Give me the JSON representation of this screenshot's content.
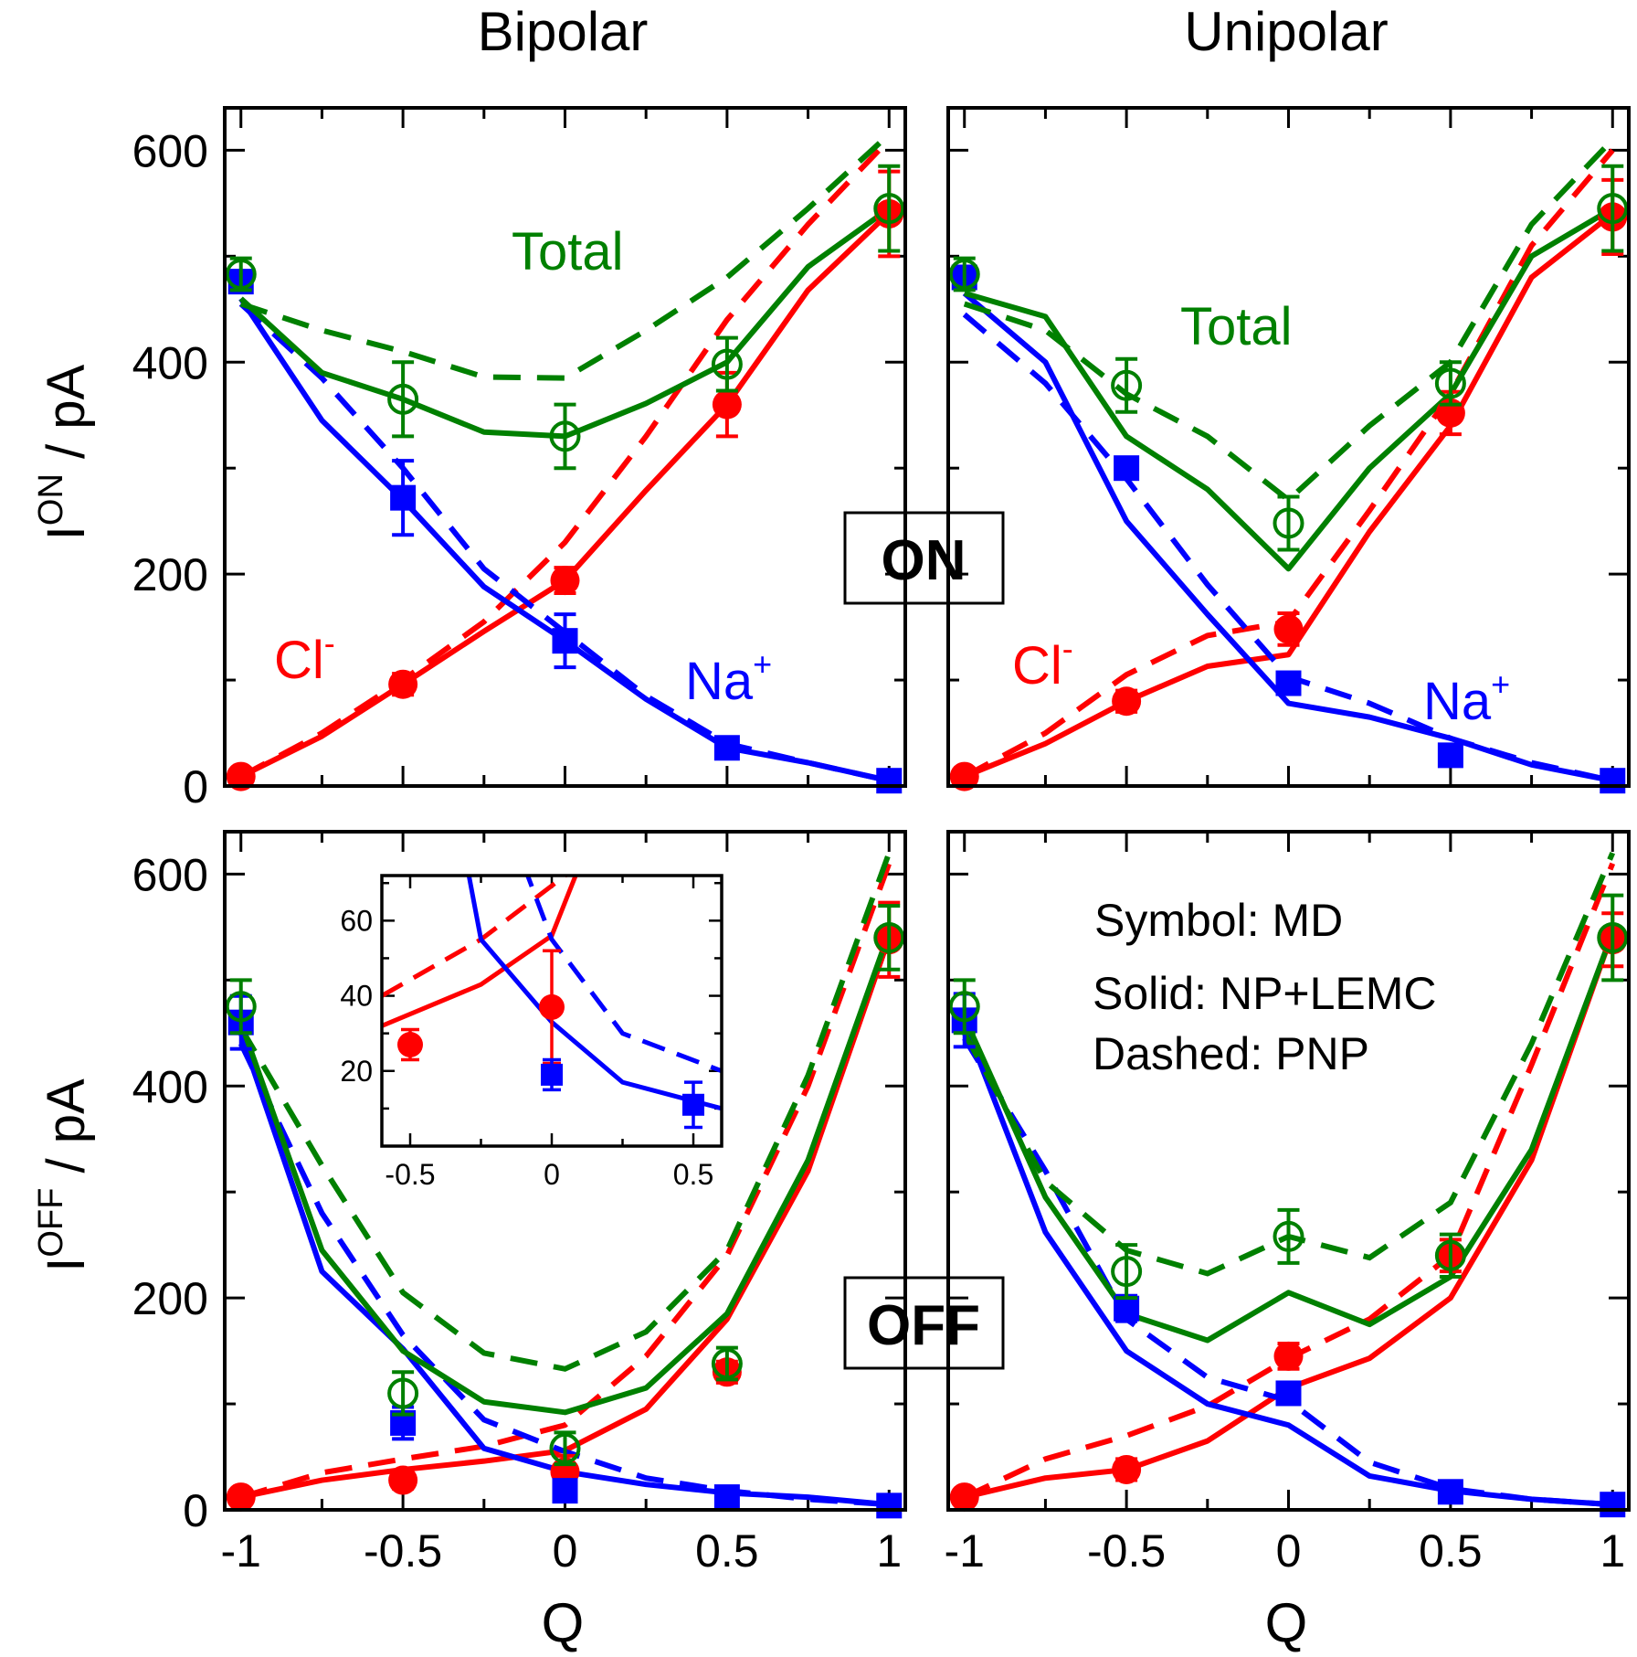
{
  "chart_data": {
    "type": "line",
    "column_titles": [
      "Bipolar",
      "Unipolar"
    ],
    "xlabel": "Q",
    "ylabels": [
      {
        "base": "I",
        "sup": "ON",
        "rest": " / pA"
      },
      {
        "base": "I",
        "sup": "OFF",
        "rest": " / pA"
      }
    ],
    "xlim": [
      -1.05,
      1.05
    ],
    "ylim": [
      0,
      640
    ],
    "x_ticks": [
      -1,
      -0.5,
      0,
      0.5,
      1
    ],
    "x_tick_labels": [
      "-1",
      "-0.5",
      "0",
      "0.5",
      "1"
    ],
    "y_ticks": [
      0,
      200,
      400,
      600
    ],
    "y_tick_labels": [
      "0",
      "200",
      "400",
      "600"
    ],
    "state_labels": {
      "on": "ON",
      "off": "OFF"
    },
    "series_colors": {
      "cl": "#ff0000",
      "na": "#0000ff",
      "total": "#008000"
    },
    "legend": [
      "Symbol: MD",
      "Solid: NP+LEMC",
      "Dashed: PNP"
    ],
    "series_labels": {
      "total": "Total",
      "cl": {
        "base": "Cl",
        "sup": "-"
      },
      "na": {
        "base": "Na",
        "sup": "+"
      }
    },
    "panels": [
      {
        "id": "bipolar-on",
        "series": {
          "cl": {
            "solid": [
              9,
              47,
              96,
              146,
              194,
              279,
              360,
              468,
              541
            ],
            "dashed": [
              9,
              50,
              100,
              155,
              230,
              330,
              440,
              530,
              610
            ],
            "md": [
              9,
              96,
              194,
              360,
              540
            ],
            "err": [
              4,
              10,
              12,
              30,
              40
            ]
          },
          "na": {
            "solid": [
              460,
              345,
              270,
              188,
              137,
              82,
              36,
              22,
              5
            ],
            "dashed": [
              455,
              385,
              300,
              205,
              145,
              85,
              40,
              22,
              5
            ],
            "md": [
              476,
              272,
              137,
              36,
              5
            ],
            "err": [
              8,
              35,
              25,
              5,
              3
            ]
          },
          "total": {
            "solid": [
              460,
              390,
              365,
              334,
              330,
              361,
              400,
              490,
              545
            ],
            "dashed": [
              455,
              430,
              410,
              386,
              385,
              430,
              480,
              545,
              615
            ],
            "md": [
              483,
              365,
              330,
              398,
              545
            ],
            "err": [
              15,
              35,
              30,
              25,
              40
            ]
          }
        }
      },
      {
        "id": "unipolar-on",
        "series": {
          "cl": {
            "solid": [
              9,
              40,
              80,
              113,
              124,
              240,
              340,
              480,
              540
            ],
            "dashed": [
              9,
              50,
              105,
              142,
              155,
              260,
              370,
              510,
              600
            ],
            "md": [
              9,
              80,
              148,
              352,
              537
            ],
            "err": [
              4,
              10,
              15,
              20,
              35
            ]
          },
          "na": {
            "solid": [
              465,
              400,
              250,
              162,
              78,
              65,
              45,
              20,
              5
            ],
            "dashed": [
              445,
              380,
              290,
              190,
              103,
              78,
              45,
              22,
              5
            ],
            "md": [
              480,
              300,
              97,
              29,
              5
            ],
            "err": [
              8,
              10,
              10,
              8,
              3
            ]
          },
          "total": {
            "solid": [
              465,
              443,
              330,
              280,
              205,
              300,
              370,
              500,
              545
            ],
            "dashed": [
              455,
              430,
              370,
              330,
              270,
              340,
              400,
              530,
              610
            ],
            "md": [
              483,
              378,
              248,
              380,
              545
            ],
            "err": [
              15,
              25,
              25,
              20,
              40
            ]
          }
        }
      },
      {
        "id": "bipolar-off",
        "series": {
          "cl": {
            "solid": [
              12,
              28,
              38,
              46,
              56,
              95,
              180,
              320,
              540
            ],
            "dashed": [
              12,
              35,
              48,
              60,
              80,
              145,
              240,
              400,
              610
            ],
            "md": [
              12,
              28,
              36,
              130,
              538
            ],
            "err": [
              4,
              8,
              15,
              10,
              35
            ]
          },
          "na": {
            "solid": [
              450,
              225,
              152,
              58,
              36,
              24,
              16,
              12,
              5
            ],
            "dashed": [
              440,
              280,
              165,
              85,
              55,
              30,
              18,
              10,
              5
            ],
            "md": [
              460,
              82,
              18,
              12,
              4
            ],
            "err": [
              25,
              15,
              8,
              6,
              3
            ]
          },
          "total": {
            "solid": [
              460,
              245,
              150,
              102,
              92,
              115,
              185,
              330,
              545
            ],
            "dashed": [
              455,
              325,
              205,
              148,
              133,
              168,
              245,
              410,
              620
            ],
            "md": [
              475,
              110,
              58,
              138,
              540
            ],
            "err": [
              25,
              20,
              15,
              15,
              30
            ]
          }
        }
      },
      {
        "id": "unipolar-off",
        "series": {
          "cl": {
            "solid": [
              12,
              30,
              38,
              65,
              115,
              143,
              200,
              330,
              545
            ],
            "dashed": [
              12,
              48,
              70,
              98,
              143,
              180,
              240,
              420,
              610
            ],
            "md": [
              12,
              38,
              145,
              240,
              538
            ],
            "err": [
              4,
              10,
              12,
              15,
              25
            ]
          },
          "na": {
            "solid": [
              460,
              262,
              150,
              100,
              80,
              32,
              18,
              10,
              5
            ],
            "dashed": [
              445,
              320,
              180,
              125,
              103,
              45,
              20,
              10,
              5
            ],
            "md": [
              462,
              190,
              110,
              17,
              5
            ],
            "err": [
              25,
              12,
              10,
              5,
              3
            ]
          },
          "total": {
            "solid": [
              465,
              295,
              185,
              160,
              205,
              175,
              220,
              340,
              545
            ],
            "dashed": [
              450,
              310,
              245,
              223,
              258,
              238,
              290,
              440,
              620
            ],
            "md": [
              475,
              225,
              258,
              240,
              540
            ],
            "err": [
              25,
              25,
              25,
              20,
              40
            ]
          }
        }
      }
    ],
    "inset": {
      "xlim": [
        -0.6,
        0.6
      ],
      "ylim": [
        0,
        72
      ],
      "x_ticks": [
        -0.5,
        0,
        0.5
      ],
      "x_tick_labels": [
        "-0.5",
        "0",
        "0.5"
      ],
      "y_ticks": [
        20,
        40,
        60
      ],
      "y_tick_labels": [
        "20",
        "40",
        "60"
      ],
      "series": {
        "cl": {
          "solid_x": [
            -0.6,
            -0.25,
            0,
            0.1
          ],
          "solid_y": [
            32,
            43,
            56,
            75
          ],
          "dashed_x": [
            -0.6,
            -0.25,
            0.1
          ],
          "dashed_y": [
            40,
            55,
            75
          ],
          "md_x": [
            -0.5,
            0
          ],
          "md_y": [
            27,
            37
          ],
          "err": [
            4,
            15
          ]
        },
        "na": {
          "solid_x": [
            -0.3,
            -0.25,
            0,
            0.25,
            0.6
          ],
          "solid_y": [
            75,
            55,
            33,
            17,
            10
          ],
          "dashed_x": [
            -0.1,
            0,
            0.25,
            0.6
          ],
          "dashed_y": [
            75,
            55,
            30,
            20
          ],
          "md_x": [
            0,
            0.5
          ],
          "md_y": [
            19,
            11
          ],
          "err": [
            4,
            6
          ]
        }
      }
    }
  }
}
